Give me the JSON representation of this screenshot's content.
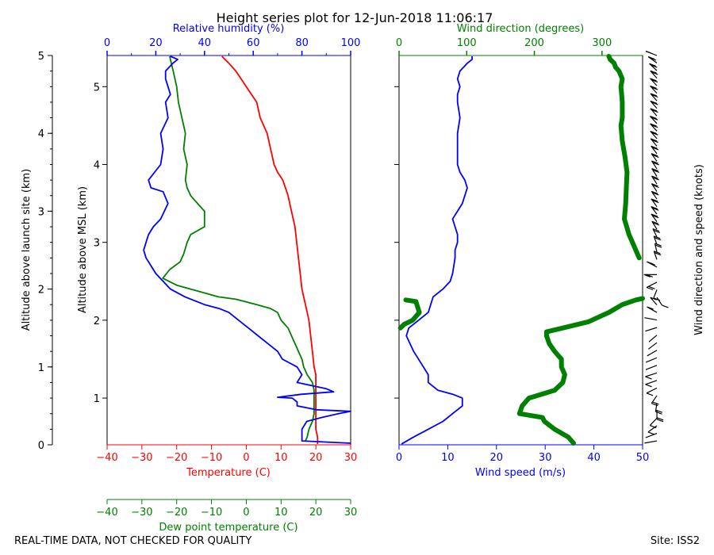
{
  "chart_data": [
    {
      "type": "line",
      "title": "Height series plot for 12-Jun-2018 11:06:17",
      "left_outer_ylabel": "Altitude above launch site (km)",
      "left_inner_ylabel": "Altitude above MSL (km)",
      "left_outer_ylim": [
        0,
        5
      ],
      "left_outer_ticks": [
        "0",
        "1",
        "2",
        "3",
        "4",
        "5"
      ],
      "msl_ylim": [
        0.4,
        5.4
      ],
      "msl_ticks": [
        "1",
        "2",
        "3",
        "4",
        "5"
      ],
      "temp_xlabel": "Temperature (C)",
      "temp_xlim": [
        -40,
        30
      ],
      "temp_ticks": [
        "−40",
        "−30",
        "−20",
        "−10",
        "0",
        "10",
        "20",
        "30"
      ],
      "dew_xlabel": "Dew point temperature (C)",
      "dew_xlim": [
        -40,
        30
      ],
      "dew_ticks": [
        "−40",
        "−30",
        "−20",
        "−10",
        "0",
        "10",
        "20",
        "30"
      ],
      "rh_xlabel": "Relative humidity (%)",
      "rh_xlim": [
        0,
        100
      ],
      "rh_ticks": [
        "0",
        "20",
        "40",
        "60",
        "80",
        "100"
      ],
      "series": [
        {
          "name": "Temperature",
          "color": "#ff0000",
          "axis": "temp",
          "x": [
            20.5,
            20.5,
            20,
            20,
            20,
            20,
            20,
            20,
            20,
            20,
            19.5,
            19,
            18.5,
            18,
            17,
            16,
            15.5,
            15,
            14.5,
            14,
            13,
            12,
            10.5,
            9,
            8,
            7,
            6,
            5,
            4,
            3,
            1.5,
            0,
            -1.5,
            -3,
            -5,
            -7
          ],
          "y": [
            0.41,
            0.5,
            0.6,
            0.7,
            0.8,
            0.9,
            1.0,
            1.1,
            1.2,
            1.3,
            1.4,
            1.6,
            1.8,
            2.0,
            2.2,
            2.4,
            2.6,
            2.8,
            3.0,
            3.2,
            3.4,
            3.6,
            3.8,
            3.9,
            4.0,
            4.2,
            4.4,
            4.5,
            4.6,
            4.8,
            4.9,
            5.0,
            5.1,
            5.2,
            5.3,
            5.39
          ]
        },
        {
          "name": "Dew point",
          "color": "#008000",
          "axis": "temp",
          "x": [
            17,
            17.5,
            18,
            19,
            19.5,
            19.5,
            19.5,
            19.5,
            19,
            17.5,
            16.5,
            16,
            15,
            14,
            13,
            12,
            10,
            9,
            7,
            3,
            -3,
            -8,
            -12,
            -16,
            -20,
            -24,
            -22,
            -19,
            -18,
            -17,
            -16,
            -12,
            -12,
            -14,
            -16,
            -17,
            -17.5,
            -17,
            -18,
            -17.5,
            -18.5,
            -19.5,
            -20,
            -21,
            -22
          ],
          "y": [
            0.45,
            0.5,
            0.6,
            0.7,
            0.8,
            0.9,
            1.0,
            1.1,
            1.2,
            1.3,
            1.4,
            1.5,
            1.6,
            1.7,
            1.8,
            1.9,
            2.0,
            2.1,
            2.15,
            2.2,
            2.27,
            2.3,
            2.35,
            2.4,
            2.45,
            2.54,
            2.65,
            2.75,
            2.85,
            3.0,
            3.1,
            3.2,
            3.4,
            3.5,
            3.6,
            3.7,
            3.8,
            4.0,
            4.2,
            4.4,
            4.6,
            4.8,
            5.0,
            5.2,
            5.39
          ]
        },
        {
          "name": "Relative humidity",
          "color": "#0000ff",
          "axis": "rh",
          "x": [
            100,
            80,
            80,
            80,
            82,
            88,
            95,
            100,
            86,
            78,
            78,
            76,
            70,
            80,
            93,
            90,
            78,
            80,
            78,
            72,
            70,
            66,
            62,
            58,
            54,
            50,
            46,
            40,
            32,
            26,
            23,
            20,
            18,
            16,
            15,
            16,
            17,
            19,
            22,
            25,
            23,
            18,
            17,
            22,
            23,
            22,
            25,
            24,
            26,
            25,
            24,
            24,
            27,
            29,
            26
          ],
          "y": [
            0.42,
            0.45,
            0.5,
            0.6,
            0.7,
            0.75,
            0.8,
            0.83,
            0.85,
            0.9,
            0.95,
            1.0,
            1.01,
            1.05,
            1.08,
            1.12,
            1.2,
            1.3,
            1.4,
            1.5,
            1.6,
            1.7,
            1.8,
            1.9,
            2.0,
            2.1,
            2.15,
            2.2,
            2.3,
            2.4,
            2.5,
            2.6,
            2.7,
            2.8,
            2.9,
            3.0,
            3.1,
            3.2,
            3.3,
            3.5,
            3.65,
            3.7,
            3.8,
            4.0,
            4.2,
            4.4,
            4.6,
            4.8,
            4.9,
            5.0,
            5.1,
            5.2,
            5.3,
            5.35,
            5.39
          ]
        }
      ]
    },
    {
      "type": "line",
      "xlabel": "Wind speed (m/s)",
      "xlim": [
        0,
        50
      ],
      "xticks": [
        "0",
        "10",
        "20",
        "30",
        "40",
        "50"
      ],
      "top_xlabel": "Wind direction (degrees)",
      "top_xlim": [
        0,
        360
      ],
      "top_xticks": [
        "0",
        "100",
        "200",
        "300"
      ],
      "right_ylabel": "Wind direction and speed (knots)",
      "series": [
        {
          "name": "Wind speed",
          "color": "#0000ff",
          "axis": "speed",
          "x": [
            0.5,
            3,
            6,
            9,
            11,
            13,
            13,
            11,
            8,
            6,
            6,
            5,
            3,
            1.5,
            2,
            4,
            6,
            6.5,
            7,
            9,
            10.5,
            11,
            11.5,
            11.5,
            12,
            12,
            11.5,
            11,
            12,
            13,
            14,
            13.5,
            12.5,
            12,
            12,
            12,
            12,
            12.5,
            12,
            12,
            12.5,
            12,
            12.5,
            14,
            15,
            15
          ],
          "y": [
            0.41,
            0.5,
            0.6,
            0.7,
            0.8,
            0.9,
            1.0,
            1.05,
            1.1,
            1.2,
            1.3,
            1.4,
            1.6,
            1.8,
            1.9,
            2.0,
            2.1,
            2.2,
            2.3,
            2.4,
            2.5,
            2.6,
            2.8,
            2.9,
            3.0,
            3.1,
            3.2,
            3.3,
            3.4,
            3.5,
            3.7,
            3.8,
            3.9,
            4.0,
            4.1,
            4.2,
            4.4,
            4.6,
            4.8,
            4.9,
            5.0,
            5.1,
            5.2,
            5.3,
            5.35,
            5.39
          ]
        },
        {
          "name": "Wind direction",
          "color": "#008000",
          "axis": "dir",
          "breaks": [
            18
          ],
          "x": [
            258,
            250,
            230,
            215,
            212,
            178,
            182,
            192,
            230,
            242,
            245,
            240,
            240,
            230,
            222,
            218,
            218,
            242,
            280,
            310,
            330,
            350,
            360,
            10,
            25,
            30,
            20,
            8,
            2,
            355,
            345,
            340,
            333,
            335,
            336,
            337,
            334,
            330,
            328,
            330,
            330,
            329,
            328,
            330,
            325,
            320,
            318,
            312,
            310
          ],
          "y": [
            0.42,
            0.5,
            0.6,
            0.7,
            0.75,
            0.8,
            0.9,
            1.0,
            1.1,
            1.2,
            1.3,
            1.4,
            1.5,
            1.6,
            1.7,
            1.8,
            1.85,
            1.9,
            1.98,
            2.1,
            2.2,
            2.26,
            2.28,
            2.26,
            2.24,
            2.1,
            2.0,
            1.95,
            1.9,
            2.8,
            3.0,
            3.1,
            3.3,
            3.5,
            3.7,
            3.9,
            4.1,
            4.3,
            4.5,
            4.6,
            4.8,
            4.9,
            5.0,
            5.1,
            5.2,
            5.25,
            5.3,
            5.35,
            5.39
          ]
        }
      ]
    }
  ],
  "footer": {
    "left": "REAL-TIME DATA, NOT CHECKED FOR QUALITY",
    "right": "Site: ISS2"
  },
  "colors": {
    "temperature": "#ff0000",
    "dewpoint": "#008000",
    "humidity": "#0000ff",
    "wind_speed": "#0000ff",
    "wind_direction": "#008000"
  }
}
